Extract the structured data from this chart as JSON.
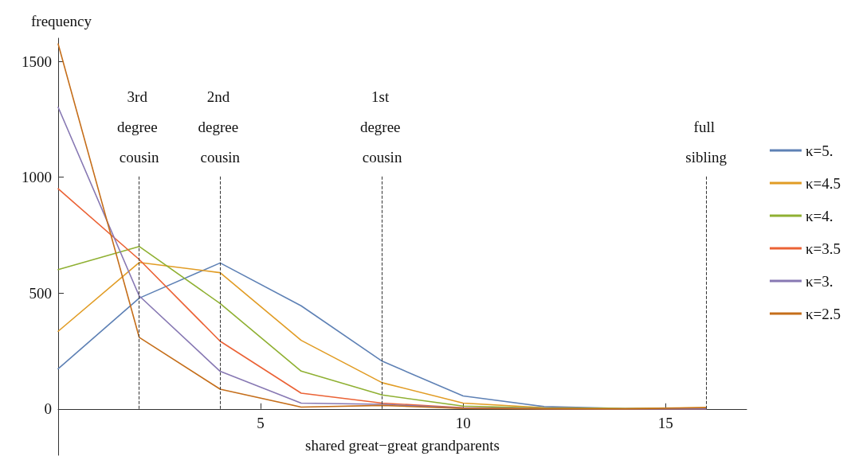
{
  "chart_data": {
    "type": "line",
    "xlabel": "shared great−great grandparents",
    "ylabel": "frequency",
    "x": [
      0,
      2,
      4,
      6,
      8,
      10,
      12,
      14,
      16
    ],
    "xlim": [
      0,
      17
    ],
    "xticks": [
      5,
      10,
      15
    ],
    "ylim": [
      -200,
      1600
    ],
    "yticks": [
      0,
      500,
      1000,
      1500
    ],
    "legend": "right",
    "marker": "none",
    "line_style": "solid",
    "series": [
      {
        "name": "κ=5.",
        "color": "#5e81b5",
        "values": [
          173,
          478,
          630,
          445,
          206,
          56,
          10,
          2,
          3
        ]
      },
      {
        "name": "κ=4.5",
        "color": "#e19c24",
        "values": [
          335,
          632,
          588,
          296,
          113,
          25,
          5,
          2,
          6
        ]
      },
      {
        "name": "κ=4.",
        "color": "#8fb032",
        "values": [
          601,
          701,
          455,
          163,
          60,
          12,
          3,
          1,
          2
        ]
      },
      {
        "name": "κ=3.5",
        "color": "#eb6235",
        "values": [
          950,
          645,
          292,
          68,
          25,
          5,
          1,
          0,
          0
        ]
      },
      {
        "name": "κ=3.",
        "color": "#8778b3",
        "values": [
          1302,
          488,
          162,
          25,
          20,
          3,
          1,
          0,
          0
        ]
      },
      {
        "name": "κ=2.5",
        "color": "#c56e1a",
        "values": [
          1575,
          309,
          85,
          8,
          15,
          2,
          0,
          0,
          5
        ]
      }
    ],
    "ref_lines": [
      {
        "axis": "x",
        "value": 2,
        "label": "3rd degree cousin",
        "line_style": "dashed"
      },
      {
        "axis": "x",
        "value": 4,
        "label": "2nd degree cousin",
        "line_style": "dashed"
      },
      {
        "axis": "x",
        "value": 8,
        "label": "1st degree cousin",
        "line_style": "dashed"
      },
      {
        "axis": "x",
        "value": 16,
        "label": "full sibling",
        "line_style": "dashed"
      }
    ]
  }
}
